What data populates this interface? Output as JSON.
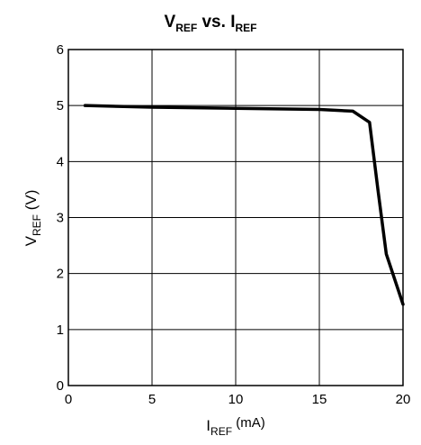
{
  "chart_data": {
    "type": "line",
    "title": {
      "v_main": "V",
      "v_sub": "REF",
      "middle": " vs. ",
      "i_main": "I",
      "i_sub": "REF"
    },
    "xlabel": {
      "main": "I",
      "sub": "REF",
      "unit": " (mA)"
    },
    "ylabel": {
      "main": "V",
      "sub": "REF",
      "unit": " (V)"
    },
    "xlim": [
      0,
      20
    ],
    "ylim": [
      0,
      6
    ],
    "xticks": [
      "0",
      "5",
      "10",
      "15",
      "20"
    ],
    "yticks": [
      "0",
      "1",
      "2",
      "3",
      "4",
      "5",
      "6"
    ],
    "grid": true,
    "series": [
      {
        "x": [
          1,
          5,
          10,
          15,
          17,
          18,
          18.5,
          19,
          20
        ],
        "y": [
          5.0,
          4.97,
          4.95,
          4.93,
          4.9,
          4.7,
          3.5,
          2.35,
          1.45
        ]
      }
    ],
    "line_color": "#000000"
  }
}
